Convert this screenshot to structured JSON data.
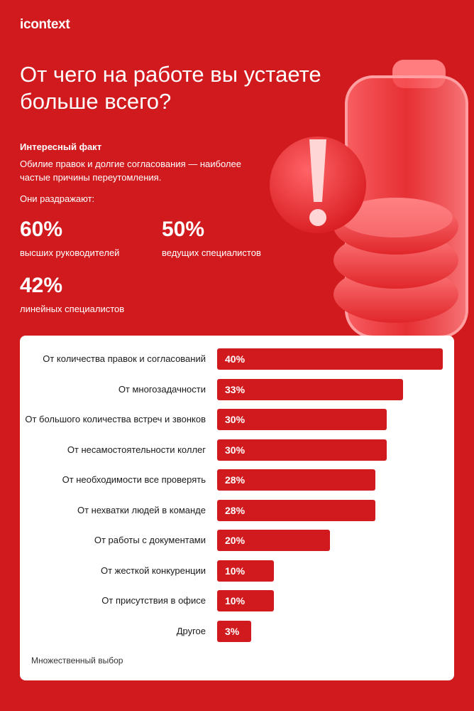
{
  "logo": "icontext",
  "title": "От чего на работе вы устаете больше всего?",
  "fact": {
    "heading": "Интересный факт",
    "text": "Обилие правок и долгие согласования — наиболее частые причины переутомления.",
    "irritate_label": "Они раздражают:"
  },
  "stats": [
    {
      "value": "60%",
      "label": "высших руководителей"
    },
    {
      "value": "50%",
      "label": "ведущих специалистов"
    },
    {
      "value": "42%",
      "label": "линейных специалистов"
    }
  ],
  "colors": {
    "brand": "#d01a1e",
    "card": "#ffffff",
    "text_dark": "#1a1a1a"
  },
  "icons": [
    "battery-icon",
    "exclamation-icon"
  ],
  "chart_data": {
    "type": "bar",
    "orientation": "horizontal",
    "categories": [
      "От количества правок и согласований",
      "От многозадачности",
      "От большого количества встреч и звонков",
      "От несамостоятельности коллег",
      "От необходимости все проверять",
      "От нехватки людей в команде",
      "От работы с документами",
      "От жесткой конкуренции",
      "От присутствия в офисе",
      "Другое"
    ],
    "values": [
      40,
      33,
      30,
      30,
      28,
      28,
      20,
      10,
      10,
      3
    ],
    "value_labels": [
      "40%",
      "33%",
      "30%",
      "30%",
      "28%",
      "28%",
      "20%",
      "10%",
      "10%",
      "3%"
    ],
    "xlim": [
      0,
      40
    ],
    "grid": false,
    "footnote": "Множественный выбор"
  }
}
